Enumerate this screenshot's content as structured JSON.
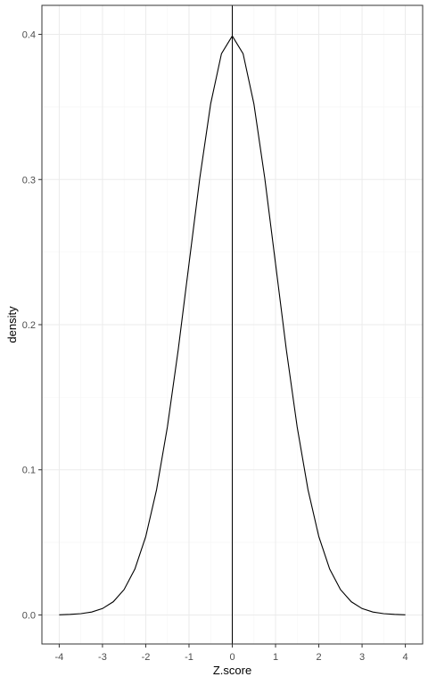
{
  "chart_data": {
    "type": "line",
    "title": "",
    "xlabel": "Z.score",
    "ylabel": "density",
    "xlim": [
      -4.4,
      4.4
    ],
    "ylim": [
      -0.02,
      0.42
    ],
    "x_ticks": [
      -4,
      -3,
      -2,
      -1,
      0,
      1,
      2,
      3,
      4
    ],
    "x_tick_labels": [
      "-4",
      "-3",
      "-2",
      "-1",
      "0",
      "1",
      "2",
      "3",
      "4"
    ],
    "y_ticks": [
      0.0,
      0.1,
      0.2,
      0.3,
      0.4
    ],
    "y_tick_labels": [
      "0.0",
      "0.1",
      "0.2",
      "0.3",
      "0.4"
    ],
    "grid": true,
    "legend": "none",
    "vline_x": 0,
    "series": [
      {
        "x": [
          -4,
          -3.75,
          -3.5,
          -3.25,
          -3,
          -2.75,
          -2.5,
          -2.25,
          -2,
          -1.75,
          -1.5,
          -1.25,
          -1,
          -0.75,
          -0.5,
          -0.25,
          0,
          0.25,
          0.5,
          0.75,
          1,
          1.25,
          1.5,
          1.75,
          2,
          2.25,
          2.5,
          2.75,
          3,
          3.25,
          3.5,
          3.75,
          4
        ],
        "y": [
          0.0001,
          0.0004,
          0.0009,
          0.002,
          0.0044,
          0.0091,
          0.0175,
          0.0317,
          0.054,
          0.0863,
          0.1295,
          0.1826,
          0.242,
          0.3011,
          0.3521,
          0.3867,
          0.3989,
          0.3867,
          0.3521,
          0.3011,
          0.242,
          0.1826,
          0.1295,
          0.0863,
          0.054,
          0.0317,
          0.0175,
          0.0091,
          0.0044,
          0.002,
          0.0009,
          0.0004,
          0.0001
        ]
      }
    ],
    "colors": {
      "line": "#000000",
      "panel_border": "#333333",
      "grid_major": "#ebebeb",
      "grid_minor": "#f5f5f5",
      "tick_text": "#4d4d4d",
      "tick_mark": "#333333"
    }
  }
}
